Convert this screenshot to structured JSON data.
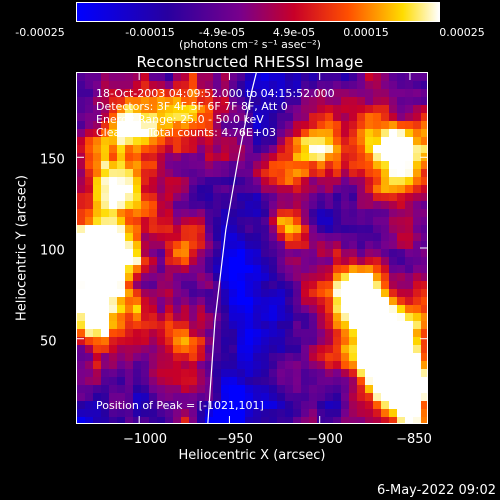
{
  "colorbar": {
    "ticks": [
      "-0.00025",
      "-0.00015",
      "-4.9e-05",
      "4.9e-05",
      "0.00015",
      "0.00025"
    ],
    "unit_label": "(photons cm⁻² s⁻¹ asec⁻²)",
    "min": -0.00025,
    "max": 0.00025
  },
  "chart_data": {
    "type": "heatmap",
    "title": "Reconstructed RHESSI Image",
    "xlabel": "Heliocentric X (arcsec)",
    "ylabel": "Heliocentric Y (arcsec)",
    "xlim": [
      -1035,
      -840
    ],
    "ylim": [
      3,
      197
    ],
    "x_ticks": [
      -1000,
      -950,
      -900,
      -850
    ],
    "x_tick_labels": [
      "−1000",
      "−950",
      "−900",
      "−850"
    ],
    "y_ticks": [
      50,
      100,
      150
    ],
    "y_tick_labels": [
      "50",
      "100",
      "150"
    ],
    "info_lines": [
      "18-Oct-2003 04:09:52.000 to 04:15:52.000",
      "Detectors: 3F 4F 5F 6F 7F 8F, Att 0",
      "Energy Range: 25.0 - 50.0 keV",
      "Clean      Total counts: 4.76E+03"
    ],
    "peak_label": "Position of Peak = [-1021,101]",
    "peak": [
      -1021,
      101
    ],
    "limb_curve": [
      [
        -962,
        3
      ],
      [
        -958,
        60
      ],
      [
        -952,
        110
      ],
      [
        -945,
        150
      ],
      [
        -938,
        185
      ],
      [
        -935,
        197
      ]
    ]
  },
  "timestamp": "6-May-2022 09:02"
}
